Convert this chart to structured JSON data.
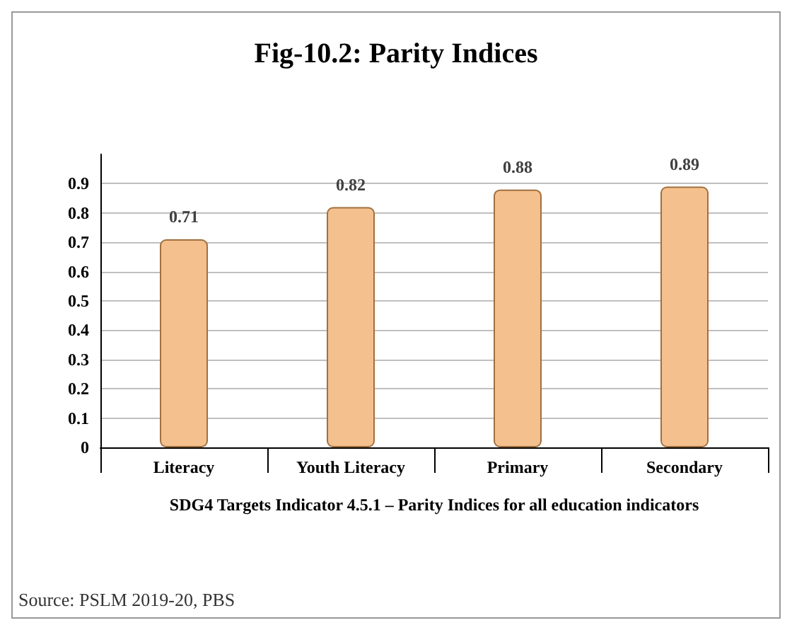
{
  "chart_data": {
    "type": "bar",
    "title": "Fig-10.2: Parity Indices",
    "xlabel": "SDG4 Targets Indicator 4.5.1 – Parity Indices for all education indicators",
    "categories": [
      "Literacy",
      "Youth Literacy",
      "Primary",
      "Secondary"
    ],
    "values": [
      0.71,
      0.82,
      0.88,
      0.89
    ],
    "color": "#f4c08e",
    "ylim": [
      0,
      1
    ],
    "yticks": [
      0,
      0.1,
      0.2,
      0.3,
      0.4,
      0.5,
      0.6,
      0.7,
      0.8,
      0.9
    ],
    "grid": "y",
    "data_labels": true,
    "annotations": [
      "Source: PSLM 2019-20, PBS"
    ]
  }
}
